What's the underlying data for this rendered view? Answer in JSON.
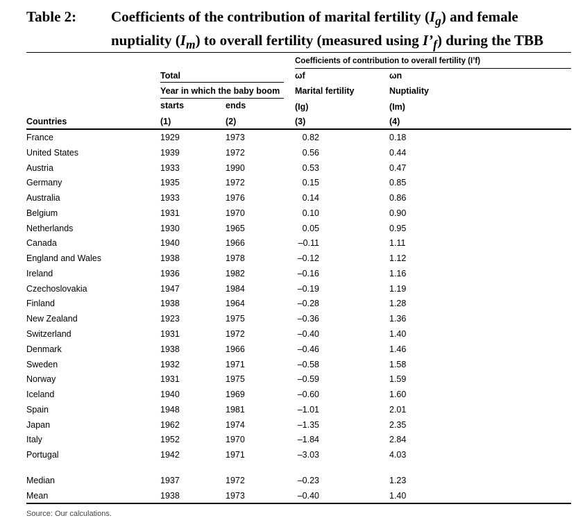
{
  "table_label": "Table 2:",
  "title_parts": {
    "p1": "Coefficients of the contribution of marital fertility (",
    "ig_base": "I",
    "ig_sub": "g",
    "p2": ") and female nuptiality (",
    "im_base": "I",
    "im_sub": "m",
    "p3": ") to overall fertility (measured using ",
    "if_base": "I’",
    "if_sub": "f",
    "p4": ") during the TBB"
  },
  "header": {
    "coeff_group": "Coefficients of contribution to overall fertility (I’f)",
    "total": "Total",
    "year_label": "Year in which the baby boom",
    "starts": "starts",
    "ends": "ends",
    "countries": "Countries",
    "col1": "(1)",
    "col2": "(2)",
    "col3": "(3)",
    "col4": "(4)",
    "omega_f": "ωf",
    "omega_n": "ωn",
    "marital_fertility": "Marital fertility",
    "nuptiality": "Nuptiality",
    "ig": "(Ig)",
    "im": "(Im)"
  },
  "rows": [
    {
      "country": "France",
      "starts": "1929",
      "ends": "1973",
      "wf": "0.82",
      "wn": "0.18"
    },
    {
      "country": "United States",
      "starts": "1939",
      "ends": "1972",
      "wf": "0.56",
      "wn": "0.44"
    },
    {
      "country": "Austria",
      "starts": "1933",
      "ends": "1990",
      "wf": "0.53",
      "wn": "0.47"
    },
    {
      "country": "Germany",
      "starts": "1935",
      "ends": "1972",
      "wf": "0.15",
      "wn": "0.85"
    },
    {
      "country": "Australia",
      "starts": "1933",
      "ends": "1976",
      "wf": "0.14",
      "wn": "0.86"
    },
    {
      "country": "Belgium",
      "starts": "1931",
      "ends": "1970",
      "wf": "0.10",
      "wn": "0.90"
    },
    {
      "country": "Netherlands",
      "starts": "1930",
      "ends": "1965",
      "wf": "0.05",
      "wn": "0.95"
    },
    {
      "country": "Canada",
      "starts": "1940",
      "ends": "1966",
      "wf": "–0.11",
      "wn": "1.11"
    },
    {
      "country": "England and Wales",
      "starts": "1938",
      "ends": "1978",
      "wf": "–0.12",
      "wn": "1.12"
    },
    {
      "country": "Ireland",
      "starts": "1936",
      "ends": "1982",
      "wf": "–0.16",
      "wn": "1.16"
    },
    {
      "country": "Czechoslovakia",
      "starts": "1947",
      "ends": "1984",
      "wf": "–0.19",
      "wn": "1.19"
    },
    {
      "country": "Finland",
      "starts": "1938",
      "ends": "1964",
      "wf": "–0.28",
      "wn": "1.28"
    },
    {
      "country": "New Zealand",
      "starts": "1923",
      "ends": "1975",
      "wf": "–0.36",
      "wn": "1.36"
    },
    {
      "country": "Switzerland",
      "starts": "1931",
      "ends": "1972",
      "wf": "–0.40",
      "wn": "1.40"
    },
    {
      "country": "Denmark",
      "starts": "1938",
      "ends": "1966",
      "wf": "–0.46",
      "wn": "1.46"
    },
    {
      "country": "Sweden",
      "starts": "1932",
      "ends": "1971",
      "wf": "–0.58",
      "wn": "1.58"
    },
    {
      "country": "Norway",
      "starts": "1931",
      "ends": "1975",
      "wf": "–0.59",
      "wn": "1.59"
    },
    {
      "country": "Iceland",
      "starts": "1940",
      "ends": "1969",
      "wf": "–0.60",
      "wn": "1.60"
    },
    {
      "country": "Spain",
      "starts": "1948",
      "ends": "1981",
      "wf": "–1.01",
      "wn": "2.01"
    },
    {
      "country": "Japan",
      "starts": "1962",
      "ends": "1974",
      "wf": "–1.35",
      "wn": "2.35"
    },
    {
      "country": "Italy",
      "starts": "1952",
      "ends": "1970",
      "wf": "–1.84",
      "wn": "2.84"
    },
    {
      "country": "Portugal",
      "starts": "1942",
      "ends": "1971",
      "wf": "–3.03",
      "wn": "4.03"
    }
  ],
  "summary": [
    {
      "country": "Median",
      "starts": "1937",
      "ends": "1972",
      "wf": "–0.23",
      "wn": "1.23"
    },
    {
      "country": "Mean",
      "starts": "1938",
      "ends": "1973",
      "wf": "–0.40",
      "wn": "1.40"
    }
  ],
  "footer": "Source: Our calculations."
}
